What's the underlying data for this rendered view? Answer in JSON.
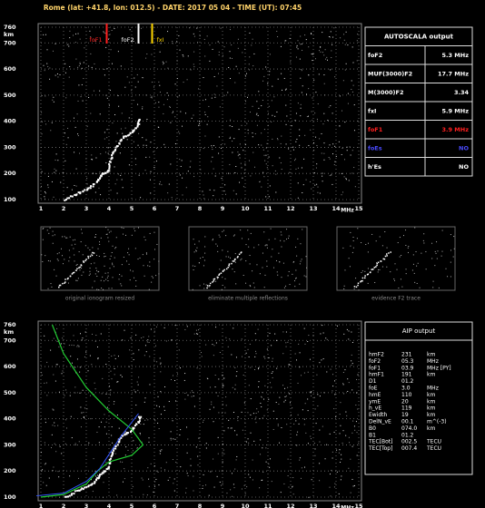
{
  "header": {
    "title": "Rome (lat: +41.8, lon: 012.5) - DATE: 2017 05 04 - TIME (UT): 07:45"
  },
  "ionogram": {
    "y_unit": "km",
    "x_unit": "MHz",
    "yticks": [
      760,
      700,
      600,
      500,
      400,
      300,
      200,
      100
    ],
    "xticks": [
      1,
      2,
      3,
      4,
      5,
      6,
      7,
      8,
      9,
      10,
      11,
      12,
      13,
      14,
      15
    ],
    "markers": [
      {
        "label": "foF1",
        "color": "#ff2020"
      },
      {
        "label": "foF2",
        "color": "#ffffff"
      },
      {
        "label": "fxI",
        "color": "#ffd700"
      }
    ]
  },
  "autoscala": {
    "title": "AUTOSCALA output",
    "rows": [
      {
        "name": "foF2",
        "value": "5.3 MHz",
        "color": "#ffffff"
      },
      {
        "name": "MUF(3000)F2",
        "value": "17.7 MHz",
        "color": "#ffffff"
      },
      {
        "name": "M(3000)F2",
        "value": "3.34",
        "color": "#ffffff"
      },
      {
        "name": "fxI",
        "value": "5.9 MHz",
        "color": "#ffffff"
      },
      {
        "name": "foF1",
        "value": "3.9 MHz",
        "color": "#ff2020"
      },
      {
        "name": "foEs",
        "value": "NO",
        "color": "#4a4aff"
      },
      {
        "name": "h'Es",
        "value": "NO",
        "color": "#ffffff"
      }
    ]
  },
  "panels": [
    "original ionogram resized",
    "eliminate multiple reflections",
    "evidence F2 trace"
  ],
  "aip": {
    "title": "AIP output",
    "rows": [
      [
        "hmF2",
        "231",
        "km"
      ],
      [
        "foF2",
        "05.3",
        "MHz"
      ],
      [
        "foF1",
        "03.9",
        "MHz   [PY]"
      ],
      [
        "hmF1",
        "191",
        "km"
      ],
      [
        "D1",
        "01.2",
        ""
      ],
      [
        "foE",
        "3.0",
        "MHz"
      ],
      [
        "hmE",
        "110",
        "km"
      ],
      [
        "ymE",
        "20",
        "km"
      ],
      [
        "h_vE",
        "119",
        "km"
      ],
      [
        "Ewidth",
        "19",
        "km"
      ],
      [
        "DelN_vE",
        "00.1",
        "m^(-3)"
      ],
      [
        "B0",
        "074.0",
        "km"
      ],
      [
        "B1",
        "01.2",
        ""
      ],
      [
        "TEC[Bot]",
        "002.5",
        "TECU"
      ],
      [
        "TEC[Top]",
        "007.4",
        "TECU"
      ]
    ]
  }
}
